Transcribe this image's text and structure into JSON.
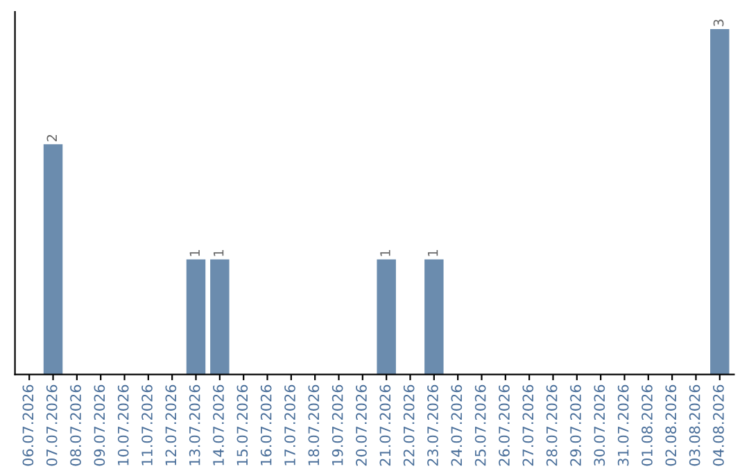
{
  "chart_data": {
    "type": "bar",
    "categories": [
      "06.07.2026",
      "07.07.2026",
      "08.07.2026",
      "09.07.2026",
      "10.07.2026",
      "11.07.2026",
      "12.07.2026",
      "13.07.2026",
      "14.07.2026",
      "15.07.2026",
      "16.07.2026",
      "17.07.2026",
      "18.07.2026",
      "19.07.2026",
      "20.07.2026",
      "21.07.2026",
      "22.07.2026",
      "23.07.2026",
      "24.07.2026",
      "25.07.2026",
      "26.07.2026",
      "27.07.2026",
      "28.07.2026",
      "29.07.2026",
      "30.07.2026",
      "31.07.2026",
      "01.08.2026",
      "02.08.2026",
      "03.08.2026",
      "04.08.2026"
    ],
    "values": [
      0,
      2,
      0,
      0,
      0,
      0,
      0,
      1,
      1,
      0,
      0,
      0,
      0,
      0,
      0,
      1,
      0,
      1,
      0,
      0,
      0,
      0,
      0,
      0,
      0,
      0,
      0,
      0,
      0,
      3
    ],
    "value_labels": [
      null,
      "2",
      null,
      null,
      null,
      null,
      null,
      "1",
      "1",
      null,
      null,
      null,
      null,
      null,
      null,
      "1",
      null,
      "1",
      null,
      null,
      null,
      null,
      null,
      null,
      null,
      null,
      null,
      null,
      null,
      "3"
    ],
    "color": "#6b8cae",
    "tick_labels": "x",
    "grid": false,
    "legend": false
  }
}
